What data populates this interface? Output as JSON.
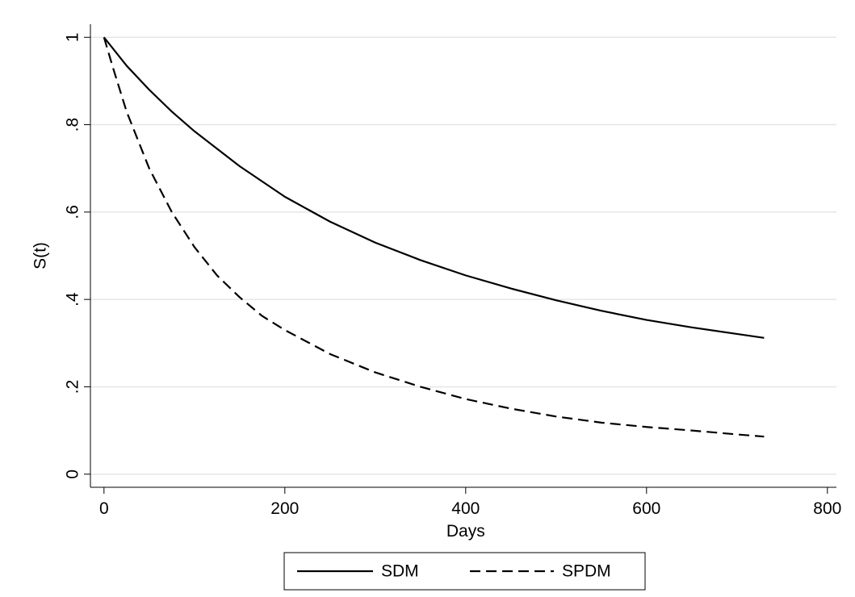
{
  "chart_data": {
    "type": "line",
    "title": "",
    "xlabel": "Days",
    "ylabel": "S(t)",
    "xlim": [
      -15,
      810
    ],
    "ylim": [
      -0.03,
      1.03
    ],
    "x_ticks": [
      0,
      200,
      400,
      600,
      800
    ],
    "x_tick_labels": [
      "0",
      "200",
      "400",
      "600",
      "800"
    ],
    "y_ticks": [
      0,
      0.2,
      0.4,
      0.6,
      0.8,
      1
    ],
    "y_tick_labels": [
      "0",
      ".2",
      ".4",
      ".6",
      ".8",
      "1"
    ],
    "grid": "horizontal",
    "legend_position": "bottom",
    "series": [
      {
        "name": "SDM",
        "style": "solid",
        "color": "#000000",
        "x": [
          0,
          25,
          50,
          75,
          100,
          150,
          200,
          250,
          300,
          350,
          400,
          450,
          500,
          550,
          600,
          650,
          700,
          730
        ],
        "y": [
          1.0,
          0.935,
          0.88,
          0.83,
          0.785,
          0.705,
          0.635,
          0.578,
          0.53,
          0.49,
          0.455,
          0.425,
          0.398,
          0.374,
          0.353,
          0.336,
          0.321,
          0.312
        ]
      },
      {
        "name": "SPDM",
        "style": "dashed",
        "color": "#000000",
        "x": [
          0,
          10,
          25,
          50,
          75,
          100,
          125,
          150,
          175,
          200,
          250,
          300,
          350,
          400,
          450,
          500,
          550,
          600,
          650,
          700,
          730
        ],
        "y": [
          1.0,
          0.93,
          0.83,
          0.7,
          0.6,
          0.52,
          0.455,
          0.405,
          0.362,
          0.33,
          0.275,
          0.233,
          0.2,
          0.172,
          0.15,
          0.132,
          0.118,
          0.108,
          0.1,
          0.091,
          0.086
        ]
      }
    ]
  }
}
